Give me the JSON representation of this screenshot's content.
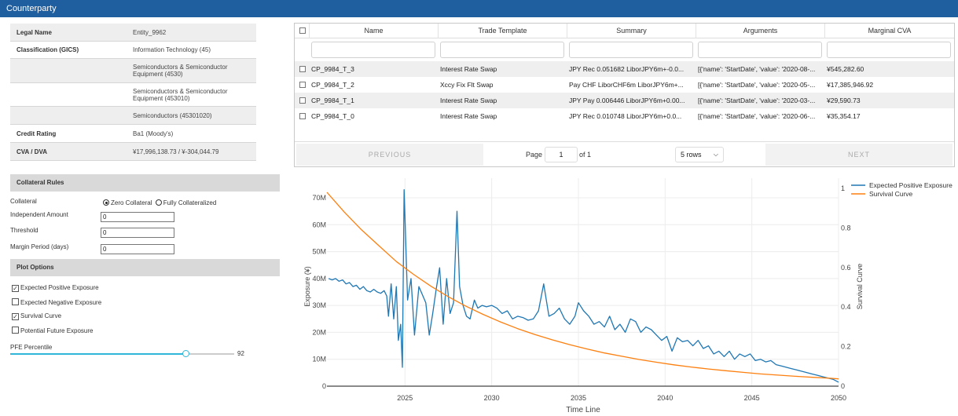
{
  "header": {
    "title": "Counterparty"
  },
  "info": {
    "rows": [
      {
        "key": "Legal Name",
        "value": "Entity_9962"
      },
      {
        "key": "Classification (GICS)",
        "value": "Information Technology (45)"
      },
      {
        "key": "",
        "value": "Semiconductors & Semiconductor Equipment (4530)"
      },
      {
        "key": "",
        "value": "Semiconductors & Semiconductor Equipment (453010)"
      },
      {
        "key": "",
        "value": "Semiconductors (45301020)"
      },
      {
        "key": "Credit Rating",
        "value": "Ba1 (Moody's)"
      },
      {
        "key": "CVA / DVA",
        "value": "¥17,996,138.73 / ¥-304,044.79"
      }
    ]
  },
  "collateral": {
    "title": "Collateral Rules",
    "collateral_label": "Collateral",
    "option_zero": "Zero Collateral",
    "option_full": "Fully Collateralized",
    "independent_amount_label": "Independent Amount",
    "independent_amount": "0",
    "threshold_label": "Threshold",
    "threshold": "0",
    "mpr_label": "Margin Period (days)",
    "mpr": "0"
  },
  "plot_options": {
    "title": "Plot Options",
    "items": [
      {
        "label": "Expected Positive Exposure",
        "checked": true
      },
      {
        "label": "Expected Negative Exposure",
        "checked": false
      },
      {
        "label": "Survival Curve",
        "checked": true
      },
      {
        "label": "Potential Future Exposure",
        "checked": false
      }
    ],
    "pfe_label": "PFE Percentile",
    "pfe_value": "92",
    "pfe_fraction": 0.92
  },
  "trades": {
    "columns": [
      "Name",
      "Trade Template",
      "Summary",
      "Arguments",
      "Marginal CVA"
    ],
    "rows": [
      {
        "name": "CP_9984_T_3",
        "template": "Interest Rate Swap",
        "summary": "JPY Rec 0.051682 LiborJPY6m+-0.0...",
        "arguments": "[{'name': 'StartDate', 'value': '2020-08-...",
        "cva": "¥545,282.60"
      },
      {
        "name": "CP_9984_T_2",
        "template": "Xccy Fix Flt Swap",
        "summary": "Pay CHF LiborCHF6m LiborJPY6m+...",
        "arguments": "[{'name': 'StartDate', 'value': '2020-05-...",
        "cva": "¥17,385,946.92"
      },
      {
        "name": "CP_9984_T_1",
        "template": "Interest Rate Swap",
        "summary": "JPY Pay 0.006446 LiborJPY6m+0.00...",
        "arguments": "[{'name': 'StartDate', 'value': '2020-03-...",
        "cva": "¥29,590.73"
      },
      {
        "name": "CP_9984_T_0",
        "template": "Interest Rate Swap",
        "summary": "JPY Rec 0.010748 LiborJPY6m+0.0...",
        "arguments": "[{'name': 'StartDate', 'value': '2020-06-...",
        "cva": "¥35,354.17"
      }
    ],
    "pagination": {
      "previous": "PREVIOUS",
      "page_label": "Page",
      "page": "1",
      "of_label": "of 1",
      "rows_option": "5 rows",
      "next": "NEXT"
    }
  },
  "chart_data": {
    "type": "line",
    "xlabel": "Time Line",
    "ylabel": "Exposure (¥)",
    "y2label": "Survival Curve",
    "xlim": [
      2020.5,
      2050
    ],
    "ylim": [
      0,
      70000000
    ],
    "y2lim": [
      0,
      1
    ],
    "x_ticks": [
      2025,
      2030,
      2035,
      2040,
      2045,
      2050
    ],
    "y_ticks": [
      "0",
      "10M",
      "20M",
      "30M",
      "40M",
      "50M",
      "60M",
      "70M"
    ],
    "y2_ticks": [
      "0",
      "0.2",
      "0.4",
      "0.6",
      "0.8",
      "1"
    ],
    "legend_position": "top-right",
    "grid": true,
    "series": [
      {
        "name": "Expected Positive Exposure",
        "axis": "y",
        "color": "#1f77b4",
        "x": [
          2020.6,
          2020.8,
          2021.0,
          2021.2,
          2021.4,
          2021.6,
          2021.8,
          2022.0,
          2022.2,
          2022.4,
          2022.6,
          2022.8,
          2023.0,
          2023.2,
          2023.4,
          2023.6,
          2023.8,
          2023.95,
          2024.05,
          2024.2,
          2024.35,
          2024.5,
          2024.62,
          2024.75,
          2024.85,
          2024.95,
          2025.15,
          2025.35,
          2025.55,
          2025.8,
          2026.0,
          2026.2,
          2026.4,
          2026.6,
          2026.8,
          2027.0,
          2027.2,
          2027.4,
          2027.6,
          2027.8,
          2028.0,
          2028.15,
          2028.35,
          2028.55,
          2028.75,
          2029.0,
          2029.2,
          2029.45,
          2029.7,
          2030.0,
          2030.3,
          2030.6,
          2030.9,
          2031.2,
          2031.5,
          2031.8,
          2032.1,
          2032.4,
          2032.7,
          2033.0,
          2033.3,
          2033.6,
          2033.9,
          2034.2,
          2034.5,
          2034.8,
          2035.0,
          2035.3,
          2035.6,
          2035.9,
          2036.2,
          2036.5,
          2036.8,
          2037.1,
          2037.4,
          2037.7,
          2038.0,
          2038.3,
          2038.6,
          2038.9,
          2039.2,
          2039.5,
          2039.8,
          2040.1,
          2040.4,
          2040.7,
          2041.0,
          2041.3,
          2041.6,
          2041.9,
          2042.2,
          2042.5,
          2042.8,
          2043.1,
          2043.4,
          2043.7,
          2044.0,
          2044.3,
          2044.6,
          2044.9,
          2045.2,
          2045.5,
          2045.8,
          2046.1,
          2046.4,
          2046.7,
          2047.0,
          2047.3,
          2047.6,
          2047.9,
          2048.2,
          2048.5,
          2048.8,
          2049.1,
          2049.4,
          2049.7,
          2050.0
        ],
        "y": [
          40000000,
          39500000,
          40000000,
          39000000,
          39500000,
          38000000,
          38500000,
          37000000,
          37500000,
          36000000,
          37000000,
          35500000,
          35000000,
          36000000,
          35000000,
          34500000,
          35500000,
          33500000,
          26000000,
          38000000,
          25000000,
          37000000,
          17000000,
          23000000,
          7000000,
          73000000,
          32000000,
          40000000,
          19000000,
          37000000,
          34000000,
          31000000,
          19000000,
          27000000,
          36000000,
          44000000,
          23000000,
          40000000,
          27000000,
          31000000,
          65000000,
          37000000,
          30000000,
          26000000,
          25000000,
          32000000,
          29000000,
          30000000,
          29500000,
          30000000,
          29000000,
          27000000,
          28000000,
          25000000,
          26000000,
          25500000,
          24500000,
          25000000,
          28000000,
          38000000,
          26000000,
          27000000,
          29000000,
          25000000,
          23000000,
          26000000,
          31000000,
          28000000,
          26000000,
          23000000,
          24000000,
          22000000,
          26000000,
          21000000,
          23000000,
          20000000,
          25000000,
          24000000,
          20000000,
          22000000,
          21000000,
          19000000,
          17000000,
          18500000,
          13000000,
          18000000,
          16500000,
          17000000,
          15000000,
          17000000,
          14000000,
          15000000,
          12000000,
          13000000,
          11000000,
          13000000,
          10000000,
          12000000,
          11000000,
          12000000,
          9500000,
          10000000,
          9000000,
          9500000,
          8000000,
          7500000,
          7000000,
          6500000,
          6000000,
          5500000,
          5000000,
          4500000,
          4000000,
          3500000,
          3000000,
          2500000,
          1500000
        ]
      },
      {
        "name": "Survival Curve",
        "axis": "y2",
        "color": "#ff7f0e",
        "x": [
          2020.5,
          2021.5,
          2022.5,
          2023.5,
          2024.5,
          2025.5,
          2026.5,
          2027.5,
          2028.5,
          2029.5,
          2030.5,
          2031.5,
          2032.5,
          2033.5,
          2034.5,
          2035.5,
          2036.5,
          2037.5,
          2038.5,
          2039.5,
          2040.5,
          2041.5,
          2042.5,
          2043.5,
          2044.5,
          2045.5,
          2046.5,
          2047.5,
          2048.5,
          2049.5,
          2050.0
        ],
        "y": [
          0.98,
          0.88,
          0.79,
          0.71,
          0.63,
          0.565,
          0.505,
          0.452,
          0.405,
          0.363,
          0.325,
          0.291,
          0.261,
          0.234,
          0.21,
          0.188,
          0.168,
          0.151,
          0.135,
          0.121,
          0.108,
          0.097,
          0.087,
          0.078,
          0.07,
          0.062,
          0.056,
          0.05,
          0.045,
          0.04,
          0.037
        ]
      }
    ]
  }
}
